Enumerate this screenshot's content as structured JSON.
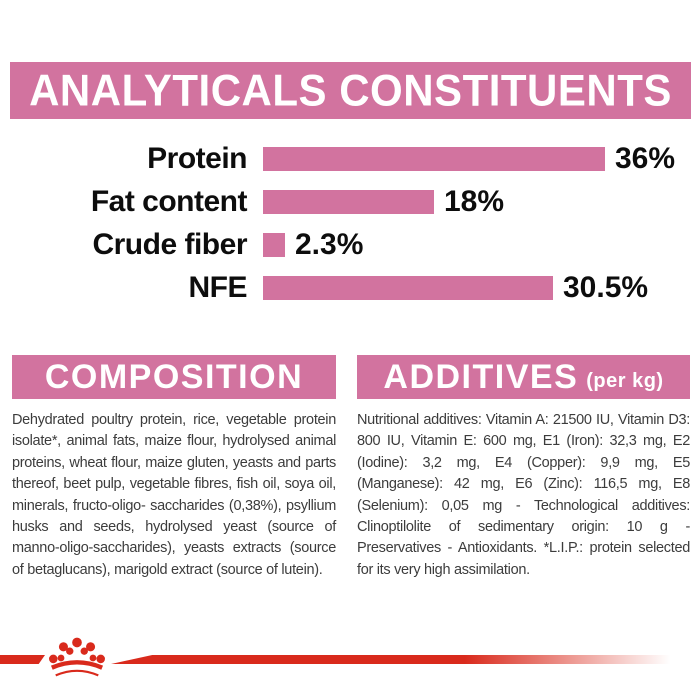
{
  "colors": {
    "pink": "#d2739f",
    "red": "#d92a1c",
    "label_text": "#0d0d0d",
    "body_text": "#3c3c3c"
  },
  "header": {
    "title": "ANALYTICALS CONSTITUENTS"
  },
  "chart_data": {
    "type": "bar",
    "orientation": "horizontal",
    "title": "ANALYTICALS CONSTITUENTS",
    "categories": [
      "Protein",
      "Fat content",
      "Crude fiber",
      "NFE"
    ],
    "values": [
      36,
      18,
      2.3,
      30.5
    ],
    "value_labels": [
      "36%",
      "18%",
      "2.3%",
      "30.5%"
    ],
    "unit": "%",
    "xlim": [
      0,
      36
    ],
    "grid": false,
    "legend": false,
    "bar_color": "#d2739f"
  },
  "composition": {
    "title": "COMPOSITION",
    "body": "Dehydrated poultry protein, rice, vegetable protein isolate*, animal fats, maize flour, hydrolysed animal proteins, wheat flour, maize gluten, yeasts and parts thereof, beet pulp, vegetable fibres, fish oil, soya oil, minerals, fructo-oligo- saccharides (0,38%), psyllium husks and seeds, hydrolysed yeast (source of manno-oligo-saccharides), yeasts extracts (source of betaglucans), marigold extract (source of lutein)."
  },
  "additives": {
    "title": "ADDITIVES",
    "unit": "(per kg)",
    "body": "Nutritional additives: Vitamin A: 21500 IU, Vitamin D3: 800 IU, Vitamin E: 600 mg, E1 (Iron): 32,3 mg, E2 (Iodine): 3,2 mg, E4 (Copper): 9,9 mg, E5 (Manganese): 42 mg, E6 (Zinc): 116,5 mg, E8 (Selenium): 0,05 mg - Technological additives: Clinoptilolite of sedimentary origin: 10 g - Preservatives - Antioxidants. *L.I.P.: protein selected for its very high assimilation."
  },
  "footer": {
    "logo": "royal-canin-crown"
  }
}
